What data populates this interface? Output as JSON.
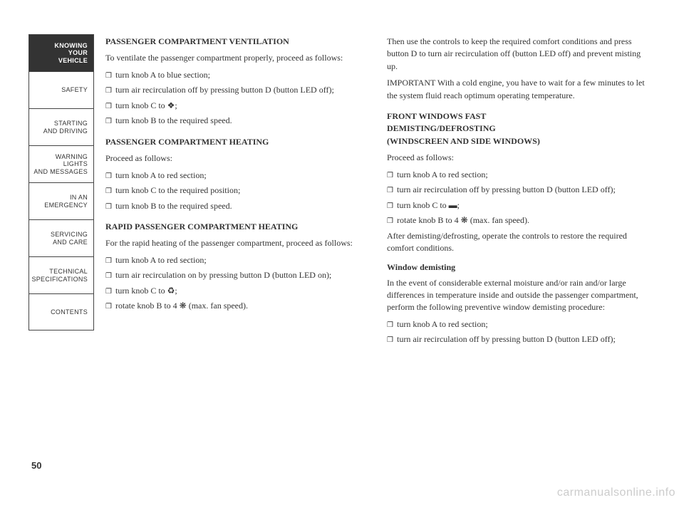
{
  "sidebar": {
    "tabs": [
      {
        "label": "KNOWING\nYOUR\nVEHICLE",
        "active": true
      },
      {
        "label": "SAFETY",
        "active": false
      },
      {
        "label": "STARTING\nAND DRIVING",
        "active": false
      },
      {
        "label": "WARNING LIGHTS\nAND MESSAGES",
        "active": false
      },
      {
        "label": "IN AN\nEMERGENCY",
        "active": false
      },
      {
        "label": "SERVICING\nAND CARE",
        "active": false
      },
      {
        "label": "TECHNICAL\nSPECIFICATIONS",
        "active": false
      },
      {
        "label": "CONTENTS",
        "active": false
      }
    ]
  },
  "left": {
    "h1": "PASSENGER COMPARTMENT VENTILATION",
    "p1": "To ventilate the passenger compartment properly, proceed as follows:",
    "b1": "turn knob A to blue section;",
    "b2": "turn air recirculation off by pressing button D (button LED off);",
    "b3": "turn knob C to ❖;",
    "b4": " turn knob B to the required speed.",
    "h2": "PASSENGER COMPARTMENT HEATING",
    "p2": "Proceed as follows:",
    "b5": "turn knob A to red section;",
    "b6": "turn knob C to the required position;",
    "b7": " turn knob B to the required speed.",
    "h3": "RAPID PASSENGER COMPARTMENT HEATING",
    "p3": "For the rapid heating of the passenger compartment, proceed as follows:",
    "b8": "turn knob A to red section;",
    "b9": "turn air recirculation on by pressing button D (button LED on);",
    "b10": "turn knob C to ♻;",
    "b11": "rotate knob B to 4 ❋ (max. fan speed)."
  },
  "right": {
    "p1": "Then use the controls to keep the required comfort conditions and press button D to turn air recirculation off (button LED off) and prevent misting up.",
    "p2": "IMPORTANT With a cold engine, you have to wait for a few minutes to let the system fluid reach optimum operating temperature.",
    "h1a": "FRONT WINDOWS FAST",
    "h1b": "DEMISTING/DEFROSTING",
    "h1c": "(WINDSCREEN AND SIDE WINDOWS)",
    "p3": "Proceed as follows:",
    "b1": "turn knob A to red section;",
    "b2": "turn air recirculation off by pressing button D (button LED off);",
    "b3": "turn knob C to ▬;",
    "b4": "rotate knob B to 4 ❋ (max. fan speed).",
    "p4": "After demisting/defrosting, operate the controls to restore the required comfort conditions.",
    "sh1": "Window demisting",
    "p5": "In the event of considerable external moisture and/or rain and/or large differences in temperature inside and outside the passenger compartment, perform the following preventive window demisting procedure:",
    "b5": "turn knob A to red section;",
    "b6": "turn air recirculation off by pressing button D (button LED off);"
  },
  "pagenum": "50",
  "watermark": "carmanualsonline.info"
}
